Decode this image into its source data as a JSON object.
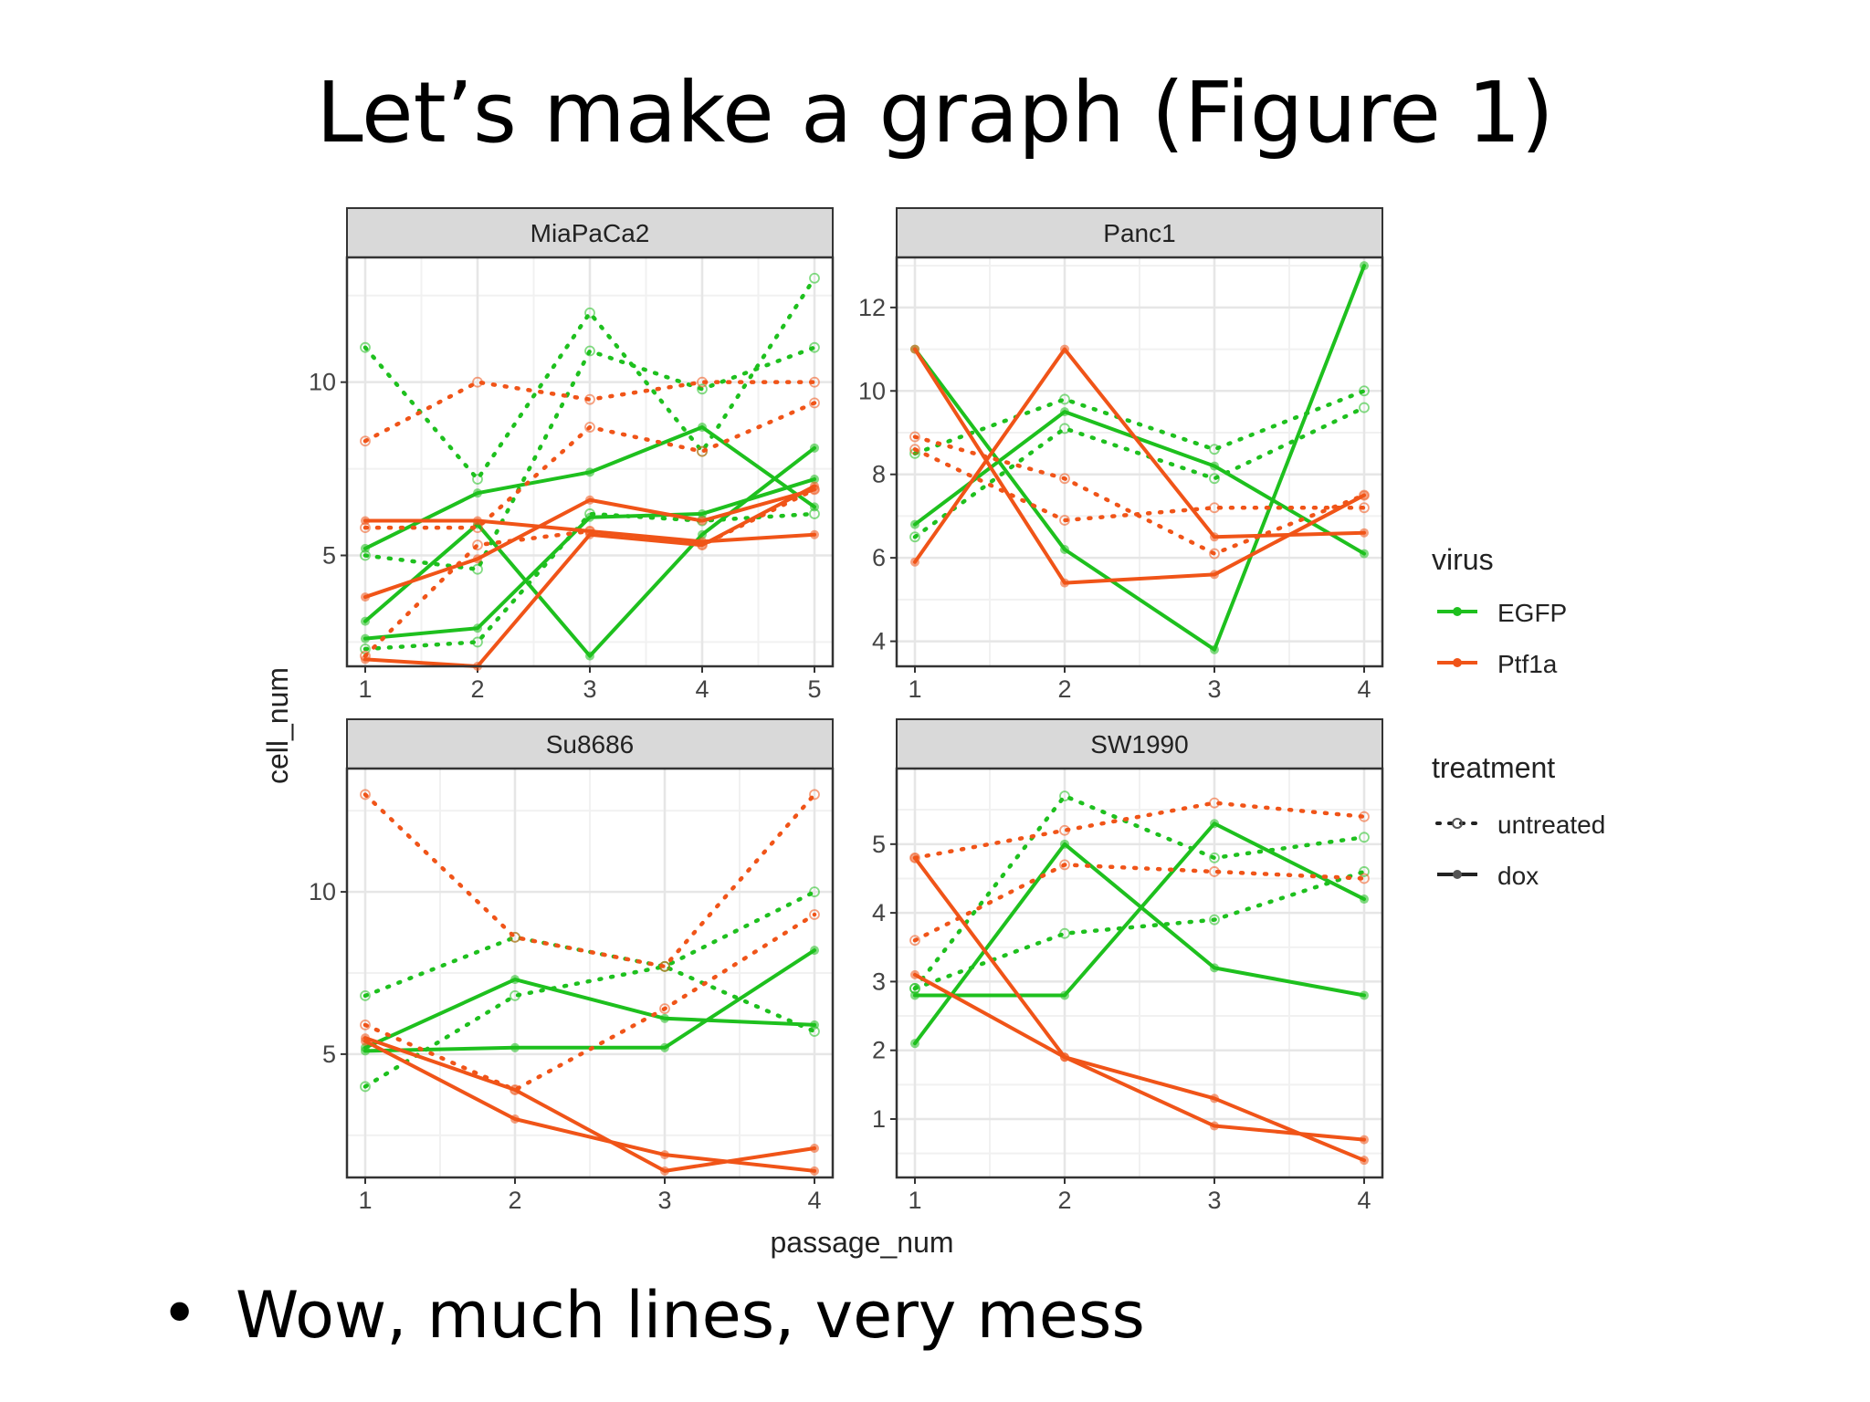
{
  "slide": {
    "title": "Let’s make a graph (Figure 1)",
    "bullet": "Wow, much lines, very mess"
  },
  "colors": {
    "EGFP": "#1ec01e",
    "Ptf1a": "#f05418"
  },
  "chart_data": {
    "type": "line",
    "xlabel": "passage_num",
    "ylabel": "cell_num",
    "legend": {
      "placement": "right",
      "virus_title": "virus",
      "virus_items": [
        "EGFP",
        "Ptf1a"
      ],
      "treatment_title": "treatment",
      "treatment_items": [
        "untreated",
        "dox"
      ]
    },
    "grid": true,
    "facets": [
      {
        "name": "MiaPaCa2",
        "x_ticks": [
          1,
          2,
          3,
          4,
          5
        ],
        "y_ticks": [
          5,
          10
        ],
        "ylim": [
          1.8,
          13.6
        ],
        "series": [
          {
            "virus": "EGFP",
            "treatment": "untreated",
            "values": [
              11,
              7.2,
              12,
              8,
              13
            ]
          },
          {
            "virus": "EGFP",
            "treatment": "untreated",
            "values": [
              5,
              4.6,
              10.9,
              9.8,
              11
            ]
          },
          {
            "virus": "EGFP",
            "treatment": "untreated",
            "values": [
              2.3,
              2.5,
              6.2,
              6,
              6.2
            ]
          },
          {
            "virus": "EGFP",
            "treatment": "dox",
            "values": [
              5.2,
              6.8,
              7.4,
              8.7,
              6.4
            ]
          },
          {
            "virus": "EGFP",
            "treatment": "dox",
            "values": [
              3.1,
              5.9,
              2.1,
              5.6,
              8.1
            ]
          },
          {
            "virus": "EGFP",
            "treatment": "dox",
            "values": [
              2.6,
              2.9,
              6.1,
              6.2,
              7.2
            ]
          },
          {
            "virus": "Ptf1a",
            "treatment": "untreated",
            "values": [
              8.3,
              10,
              9.5,
              10,
              10
            ]
          },
          {
            "virus": "Ptf1a",
            "treatment": "untreated",
            "values": [
              5.8,
              5.8,
              8.7,
              8,
              9.4
            ]
          },
          {
            "virus": "Ptf1a",
            "treatment": "untreated",
            "values": [
              2.1,
              5.3,
              5.7,
              5.3,
              6.9
            ]
          },
          {
            "virus": "Ptf1a",
            "treatment": "dox",
            "values": [
              6,
              6,
              5.7,
              5.4,
              5.6
            ]
          },
          {
            "virus": "Ptf1a",
            "treatment": "dox",
            "values": [
              3.8,
              4.9,
              6.6,
              6,
              6.9
            ]
          },
          {
            "virus": "Ptf1a",
            "treatment": "dox",
            "values": [
              2,
              1.8,
              5.6,
              5.3,
              7
            ]
          }
        ]
      },
      {
        "name": "Panc1",
        "x_ticks": [
          1,
          2,
          3,
          4
        ],
        "y_ticks": [
          4,
          6,
          8,
          10,
          12
        ],
        "ylim": [
          3.4,
          13.2
        ],
        "series": [
          {
            "virus": "EGFP",
            "treatment": "untreated",
            "values": [
              8.5,
              9.8,
              8.6,
              10
            ]
          },
          {
            "virus": "EGFP",
            "treatment": "untreated",
            "values": [
              6.5,
              9.1,
              7.9,
              9.6
            ]
          },
          {
            "virus": "EGFP",
            "treatment": "dox",
            "values": [
              6.8,
              9.5,
              8.2,
              6.1
            ]
          },
          {
            "virus": "EGFP",
            "treatment": "dox",
            "values": [
              11,
              6.2,
              3.8,
              13
            ]
          },
          {
            "virus": "Ptf1a",
            "treatment": "untreated",
            "values": [
              8.9,
              7.9,
              6.1,
              7.5
            ]
          },
          {
            "virus": "Ptf1a",
            "treatment": "untreated",
            "values": [
              8.6,
              6.9,
              7.2,
              7.2
            ]
          },
          {
            "virus": "Ptf1a",
            "treatment": "dox",
            "values": [
              11,
              5.4,
              5.6,
              7.5
            ]
          },
          {
            "virus": "Ptf1a",
            "treatment": "dox",
            "values": [
              5.9,
              11,
              6.5,
              6.6
            ]
          }
        ]
      },
      {
        "name": "Su8686",
        "x_ticks": [
          1,
          2,
          3,
          4
        ],
        "y_ticks": [
          5,
          10
        ],
        "ylim": [
          1.2,
          13.8
        ],
        "series": [
          {
            "virus": "EGFP",
            "treatment": "untreated",
            "values": [
              6.8,
              8.6,
              7.7,
              10
            ]
          },
          {
            "virus": "EGFP",
            "treatment": "untreated",
            "values": [
              4,
              6.8,
              7.7,
              5.7
            ]
          },
          {
            "virus": "EGFP",
            "treatment": "dox",
            "values": [
              5.2,
              7.3,
              6.1,
              5.9
            ]
          },
          {
            "virus": "EGFP",
            "treatment": "dox",
            "values": [
              5.1,
              5.2,
              5.2,
              8.2
            ]
          },
          {
            "virus": "Ptf1a",
            "treatment": "untreated",
            "values": [
              13,
              8.6,
              7.7,
              13
            ]
          },
          {
            "virus": "Ptf1a",
            "treatment": "untreated",
            "values": [
              5.9,
              3.9,
              6.4,
              9.3
            ]
          },
          {
            "virus": "Ptf1a",
            "treatment": "dox",
            "values": [
              5.5,
              3.9,
              1.4,
              2.1
            ]
          },
          {
            "virus": "Ptf1a",
            "treatment": "dox",
            "values": [
              5.4,
              3,
              1.9,
              1.4
            ]
          }
        ]
      },
      {
        "name": "SW1990",
        "x_ticks": [
          1,
          2,
          3,
          4
        ],
        "y_ticks": [
          1,
          2,
          3,
          4,
          5
        ],
        "ylim": [
          0.15,
          6.1
        ],
        "series": [
          {
            "virus": "EGFP",
            "treatment": "untreated",
            "values": [
              2.9,
              5.7,
              4.8,
              5.1
            ]
          },
          {
            "virus": "EGFP",
            "treatment": "untreated",
            "values": [
              2.9,
              3.7,
              3.9,
              4.6
            ]
          },
          {
            "virus": "EGFP",
            "treatment": "dox",
            "values": [
              2.1,
              5,
              3.2,
              2.8
            ]
          },
          {
            "virus": "EGFP",
            "treatment": "dox",
            "values": [
              2.8,
              2.8,
              5.3,
              4.2
            ]
          },
          {
            "virus": "Ptf1a",
            "treatment": "untreated",
            "values": [
              4.8,
              5.2,
              5.6,
              5.4
            ]
          },
          {
            "virus": "Ptf1a",
            "treatment": "untreated",
            "values": [
              3.6,
              4.7,
              4.6,
              4.5
            ]
          },
          {
            "virus": "Ptf1a",
            "treatment": "dox",
            "values": [
              4.8,
              1.9,
              0.9,
              0.7
            ]
          },
          {
            "virus": "Ptf1a",
            "treatment": "dox",
            "values": [
              3.1,
              1.9,
              1.3,
              0.4
            ]
          }
        ]
      }
    ]
  }
}
